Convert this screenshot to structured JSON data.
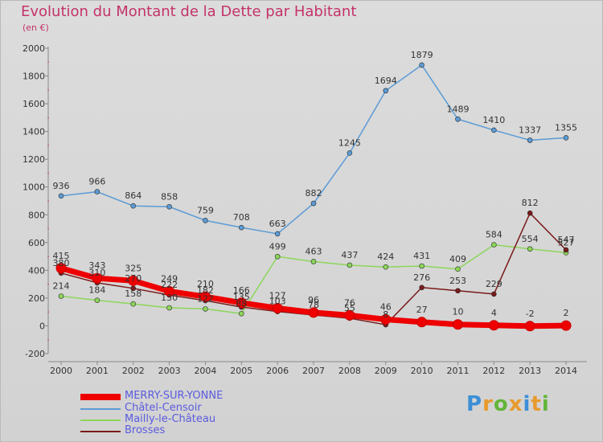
{
  "header": {
    "title": "Evolution du Montant de la Dette par Habitant",
    "subtitle": "(en €)"
  },
  "chart_data": {
    "type": "line",
    "title": "Evolution du Montant de la Dette par Habitant",
    "subtitle": "(en €)",
    "xlabel": "",
    "ylabel": "",
    "x": [
      "2000",
      "2001",
      "2002",
      "2003",
      "2004",
      "2005",
      "2006",
      "2007",
      "2008",
      "2009",
      "2010",
      "2011",
      "2012",
      "2013",
      "2014"
    ],
    "ylim": [
      -200,
      2000
    ],
    "yticks": [
      -200,
      0,
      200,
      400,
      600,
      800,
      1000,
      1200,
      1400,
      1600,
      1800,
      2000
    ],
    "grid": false,
    "legend_position": "bottom-left",
    "series": [
      {
        "name": "MERRY-SUR-YONNE",
        "color": "#ee0000",
        "values": [
          415,
          343,
          325,
          249,
          210,
          166,
          127,
          96,
          76,
          46,
          27,
          10,
          4,
          -2,
          2
        ]
      },
      {
        "name": "Châtel-Censoir",
        "color": "#5b9bd5",
        "values": [
          936,
          966,
          864,
          858,
          759,
          708,
          663,
          882,
          1245,
          1694,
          1879,
          1489,
          1410,
          1337,
          1355
        ]
      },
      {
        "name": "Mailly-le-Château",
        "color": "#8cd65a",
        "values": [
          214,
          184,
          158,
          130,
          122,
          88,
          499,
          463,
          437,
          424,
          431,
          409,
          584,
          554,
          527
        ]
      },
      {
        "name": "Brosses",
        "color": "#7a1a1a",
        "values": [
          380,
          310,
          270,
          222,
          182,
          135,
          103,
          78,
          55,
          8,
          276,
          253,
          229,
          812,
          547
        ]
      }
    ]
  },
  "logo": {
    "letters": [
      "P",
      "r",
      "o",
      "x",
      "i",
      "t",
      "i"
    ],
    "colors": [
      "#3d8fd6",
      "#e89a2c",
      "#64b53a",
      "#e89a2c",
      "#3d8fd6",
      "#e89a2c",
      "#64b53a"
    ]
  }
}
